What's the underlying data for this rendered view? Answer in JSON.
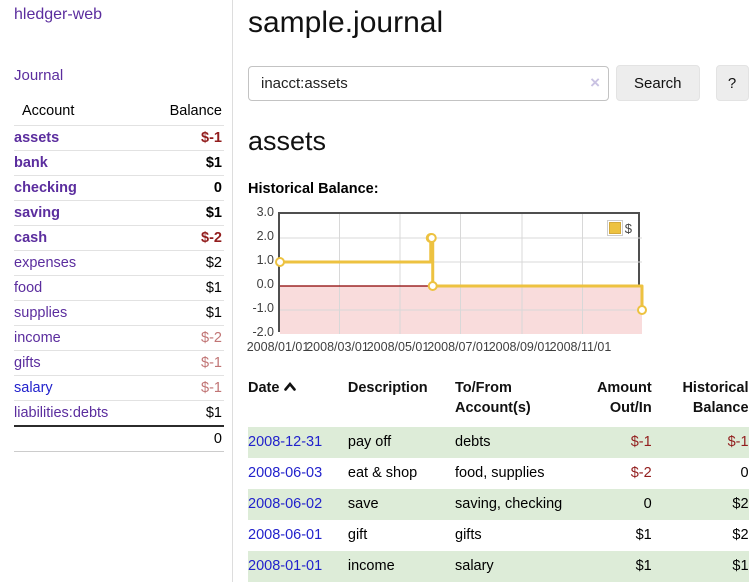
{
  "sidebar": {
    "brand": "hledger-web",
    "journal_link": "Journal",
    "accounts_table": {
      "header_account": "Account",
      "header_balance": "Balance",
      "rows": [
        {
          "name": "assets",
          "balance": "$-1"
        },
        {
          "name": "bank",
          "balance": "$1"
        },
        {
          "name": "checking",
          "balance": "0"
        },
        {
          "name": "saving",
          "balance": "$1"
        },
        {
          "name": "cash",
          "balance": "$-2"
        },
        {
          "name": "expenses",
          "balance": "$2"
        },
        {
          "name": "food",
          "balance": "$1"
        },
        {
          "name": "supplies",
          "balance": "$1"
        },
        {
          "name": "income",
          "balance": "$-2"
        },
        {
          "name": "gifts",
          "balance": "$-1"
        },
        {
          "name": "salary",
          "balance": "$-1"
        },
        {
          "name": "liabilities:debts",
          "balance": "$1"
        }
      ],
      "total": "0"
    }
  },
  "header": {
    "title": "sample.journal"
  },
  "search": {
    "query": "inacct:assets",
    "clear_icon": "×",
    "button_label": "Search",
    "help_label": "?"
  },
  "account_page": {
    "title": "assets",
    "section_label": "Historical Balance:"
  },
  "chart_data": {
    "type": "line",
    "title": "Historical Balance",
    "steps": true,
    "series": [
      {
        "name": "$",
        "color": "#edc240",
        "x": [
          "2008-01-01",
          "2008-06-01",
          "2008-06-02",
          "2008-06-03",
          "2008-12-31"
        ],
        "values": [
          1,
          2,
          2,
          0,
          -1
        ]
      }
    ],
    "xlim": [
      "2008-01-01",
      "2008-12-31"
    ],
    "ylim": [
      -2,
      3
    ],
    "yticks": [
      3,
      2,
      1,
      0,
      -1,
      -2
    ],
    "xtick_labels": [
      "2008/01/01",
      "2008/03/01",
      "2008/05/01",
      "2008/07/01",
      "2008/09/01",
      "2008/11/01"
    ],
    "legend": {
      "label": "$",
      "position": "top-right"
    },
    "grid": true,
    "negative_fill": "#f9dcdc",
    "zero_line_color": "#8b0000",
    "grid_color": "#d8d8d8"
  },
  "register_table": {
    "headers": {
      "date": "Date",
      "description": "Description",
      "accounts": "To/From Account(s)",
      "amount": "Amount Out/In",
      "balance": "Historical Balance"
    },
    "rows": [
      {
        "date": "2008-12-31",
        "description": "pay off",
        "accounts": "debts",
        "amount": "$-1",
        "balance": "$-1"
      },
      {
        "date": "2008-06-03",
        "description": "eat & shop",
        "accounts": "food, supplies",
        "amount": "$-2",
        "balance": "0"
      },
      {
        "date": "2008-06-02",
        "description": "save",
        "accounts": "saving, checking",
        "amount": "0",
        "balance": "$2"
      },
      {
        "date": "2008-06-01",
        "description": "gift",
        "accounts": "gifts",
        "amount": "$1",
        "balance": "$2"
      },
      {
        "date": "2008-01-01",
        "description": "income",
        "accounts": "salary",
        "amount": "$1",
        "balance": "$1"
      }
    ]
  },
  "colors": {
    "link_purple": "#5b2d9e",
    "link_blue": "#2222cc",
    "negative_red": "#921d1d",
    "negative_soft_red": "#c17575",
    "row_stripe_green": "#ddecd8",
    "series_gold": "#edc240"
  }
}
